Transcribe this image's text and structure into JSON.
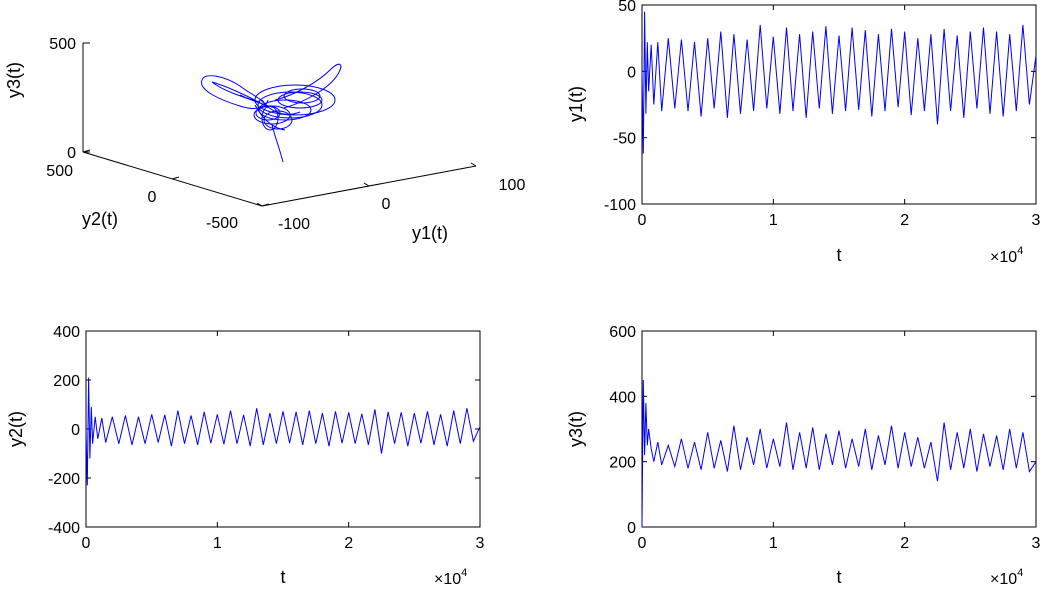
{
  "chart_data": [
    {
      "type": "line3d",
      "xlabel": "y1(t)",
      "ylabel": "y2(t)",
      "zlabel": "y3(t)",
      "xlim": [
        -100,
        100
      ],
      "ylim": [
        -500,
        500
      ],
      "zlim": [
        0,
        500
      ],
      "xticks": [
        "-100",
        "0",
        "100"
      ],
      "yticks": [
        "500",
        "0",
        "-500"
      ],
      "zticks": [
        "500",
        "0"
      ],
      "color": "#0000FF",
      "grid": false
    },
    {
      "type": "line",
      "xlabel": "t",
      "ylabel": "y1(t)",
      "xlim": [
        0,
        30000
      ],
      "ylim": [
        -100,
        50
      ],
      "xticks": [
        0,
        10000,
        20000,
        30000
      ],
      "xtick_labels": [
        "0",
        "1",
        "2",
        "3"
      ],
      "x_exponent": "×10",
      "x_exponent_power": "4",
      "yticks": [
        50,
        0,
        -50,
        -100
      ],
      "ytick_labels": [
        "50",
        "0",
        "-50",
        "-100"
      ],
      "color": "#0000FF",
      "grid": false,
      "series_x": [
        0,
        100,
        200,
        300,
        400,
        500,
        700,
        900,
        1200,
        1500,
        2000,
        2500,
        3000,
        3500,
        4000,
        4500,
        5000,
        5500,
        6000,
        6500,
        7000,
        7500,
        8000,
        8500,
        9000,
        9500,
        10000,
        10500,
        11000,
        11500,
        12000,
        12500,
        13000,
        13500,
        14000,
        14500,
        15000,
        15500,
        16000,
        16500,
        17000,
        17500,
        18000,
        18500,
        19000,
        19500,
        20000,
        20500,
        21000,
        21500,
        22000,
        22500,
        23000,
        23500,
        24000,
        24500,
        25000,
        25500,
        26000,
        26500,
        27000,
        27500,
        28000,
        28500,
        29000,
        29500,
        30000
      ],
      "series_y": [
        0,
        -62,
        45,
        -32,
        22,
        -15,
        20,
        -25,
        22,
        -30,
        25,
        -28,
        24,
        -30,
        22,
        -34,
        25,
        -28,
        30,
        -35,
        28,
        -32,
        24,
        -30,
        35,
        -28,
        26,
        -32,
        33,
        -30,
        28,
        -35,
        30,
        -28,
        34,
        -32,
        27,
        -30,
        33,
        -29,
        31,
        -34,
        28,
        -30,
        32,
        -27,
        30,
        -33,
        25,
        -30,
        28,
        -40,
        32,
        -30,
        27,
        -35,
        30,
        -28,
        33,
        -32,
        30,
        -34,
        28,
        -30,
        35,
        -25,
        12
      ]
    },
    {
      "type": "line",
      "xlabel": "t",
      "ylabel": "y2(t)",
      "xlim": [
        0,
        30000
      ],
      "ylim": [
        -400,
        400
      ],
      "xticks": [
        0,
        10000,
        20000,
        30000
      ],
      "xtick_labels": [
        "0",
        "1",
        "2",
        "3"
      ],
      "x_exponent": "×10",
      "x_exponent_power": "4",
      "yticks": [
        400,
        200,
        0,
        -200,
        -400
      ],
      "ytick_labels": [
        "400",
        "200",
        "0",
        "-200",
        "-400"
      ],
      "color": "#0000FF",
      "grid": false,
      "series_x": [
        0,
        100,
        200,
        300,
        400,
        500,
        700,
        900,
        1200,
        1500,
        2000,
        2500,
        3000,
        3500,
        4000,
        4500,
        5000,
        5500,
        6000,
        6500,
        7000,
        7500,
        8000,
        8500,
        9000,
        9500,
        10000,
        10500,
        11000,
        11500,
        12000,
        12500,
        13000,
        13500,
        14000,
        14500,
        15000,
        15500,
        16000,
        16500,
        17000,
        17500,
        18000,
        18500,
        19000,
        19500,
        20000,
        20500,
        21000,
        21500,
        22000,
        22500,
        23000,
        23500,
        24000,
        24500,
        25000,
        25500,
        26000,
        26500,
        27000,
        27500,
        28000,
        28500,
        29000,
        29500,
        30000
      ],
      "series_y": [
        0,
        -230,
        210,
        -120,
        90,
        -60,
        50,
        -40,
        45,
        -55,
        50,
        -60,
        55,
        -65,
        50,
        -60,
        60,
        -55,
        58,
        -70,
        75,
        -60,
        55,
        -65,
        70,
        -58,
        60,
        -62,
        75,
        -60,
        58,
        -70,
        85,
        -65,
        65,
        -60,
        72,
        -58,
        70,
        -65,
        75,
        -60,
        65,
        -70,
        72,
        -58,
        68,
        -60,
        62,
        -65,
        80,
        -100,
        70,
        -60,
        68,
        -70,
        65,
        -58,
        72,
        -65,
        60,
        -70,
        75,
        -60,
        85,
        -50,
        10
      ]
    },
    {
      "type": "line",
      "xlabel": "t",
      "ylabel": "y3(t)",
      "xlim": [
        0,
        30000
      ],
      "ylim": [
        0,
        600
      ],
      "xticks": [
        0,
        10000,
        20000,
        30000
      ],
      "xtick_labels": [
        "0",
        "1",
        "2",
        "3"
      ],
      "x_exponent": "×10",
      "x_exponent_power": "4",
      "yticks": [
        600,
        400,
        200,
        0
      ],
      "ytick_labels": [
        "600",
        "400",
        "200",
        "0"
      ],
      "color": "#0000FF",
      "grid": false,
      "series_x": [
        0,
        100,
        200,
        300,
        400,
        500,
        700,
        900,
        1200,
        1500,
        2000,
        2500,
        3000,
        3500,
        4000,
        4500,
        5000,
        5500,
        6000,
        6500,
        7000,
        7500,
        8000,
        8500,
        9000,
        9500,
        10000,
        10500,
        11000,
        11500,
        12000,
        12500,
        13000,
        13500,
        14000,
        14500,
        15000,
        15500,
        16000,
        16500,
        17000,
        17500,
        18000,
        18500,
        19000,
        19500,
        20000,
        20500,
        21000,
        21500,
        22000,
        22500,
        23000,
        23500,
        24000,
        24500,
        25000,
        25500,
        26000,
        26500,
        27000,
        27500,
        28000,
        28500,
        29000,
        29500,
        30000
      ],
      "series_y": [
        0,
        450,
        220,
        380,
        250,
        300,
        240,
        200,
        260,
        190,
        250,
        185,
        270,
        180,
        260,
        175,
        290,
        180,
        265,
        170,
        310,
        175,
        275,
        190,
        300,
        180,
        270,
        185,
        320,
        175,
        290,
        180,
        305,
        175,
        285,
        190,
        295,
        180,
        270,
        185,
        300,
        175,
        280,
        190,
        310,
        180,
        290,
        185,
        275,
        180,
        260,
        140,
        320,
        175,
        290,
        180,
        300,
        170,
        285,
        185,
        280,
        175,
        300,
        180,
        290,
        170,
        200
      ]
    }
  ]
}
